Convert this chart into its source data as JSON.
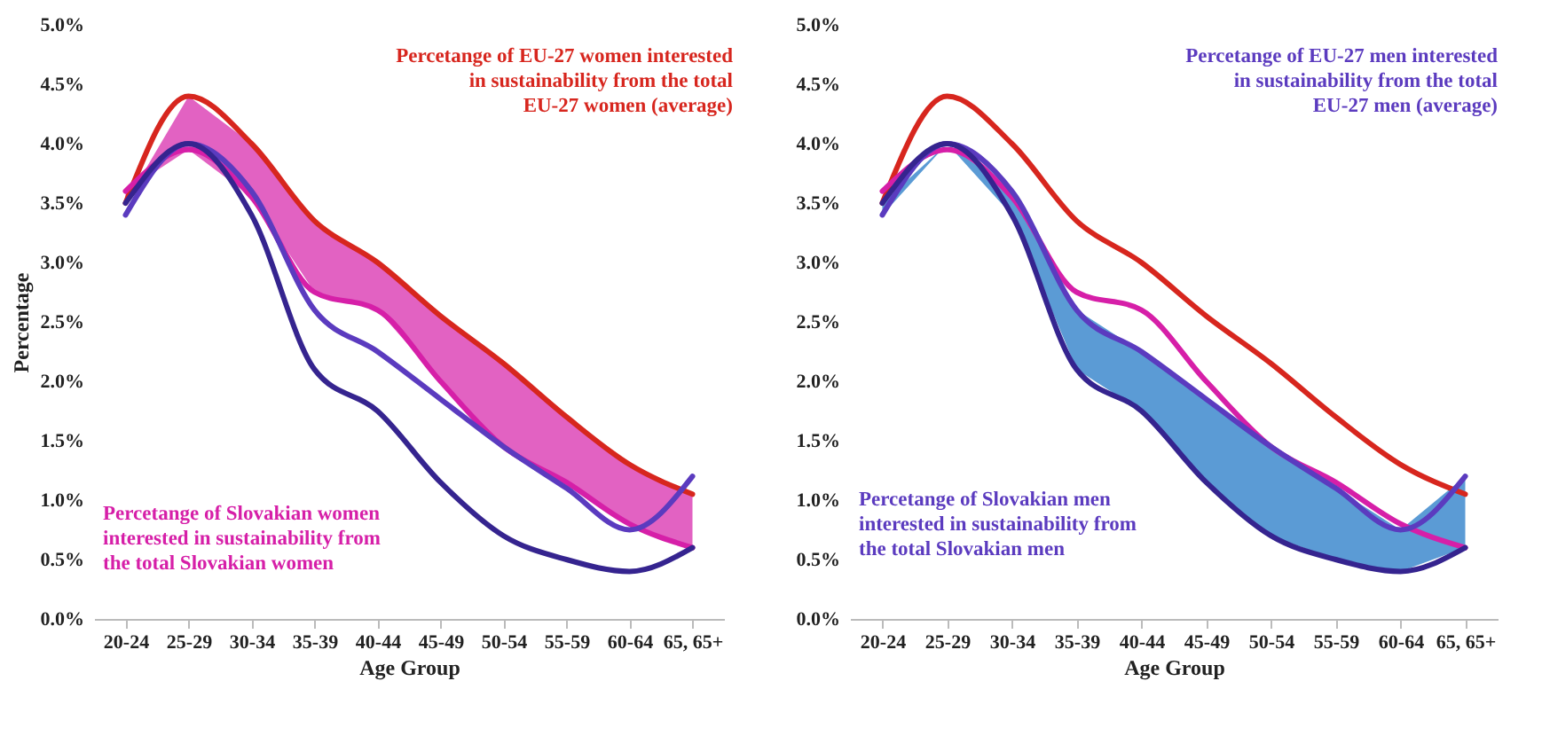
{
  "chart_data": [
    {
      "type": "line",
      "xlabel": "Age Group",
      "ylabel": "Percentage",
      "categories": [
        "20-24",
        "25-29",
        "30-34",
        "35-39",
        "40-44",
        "45-49",
        "50-54",
        "55-59",
        "60-64",
        "65, 65+"
      ],
      "ylim": [
        0,
        5
      ],
      "yticks": [
        {
          "value": 0,
          "label": "0.0%"
        },
        {
          "value": 0.5,
          "label": "0.5%"
        },
        {
          "value": 1,
          "label": "1.0%"
        },
        {
          "value": 1.5,
          "label": "1.5%"
        },
        {
          "value": 2,
          "label": "2.0%"
        },
        {
          "value": 2.5,
          "label": "2.5%"
        },
        {
          "value": 3,
          "label": "3.0%"
        },
        {
          "value": 3.5,
          "label": "3.5%"
        },
        {
          "value": 4,
          "label": "4.0%"
        },
        {
          "value": 4.5,
          "label": "4.5%"
        },
        {
          "value": 5,
          "label": "5.0%"
        }
      ],
      "series": [
        {
          "color": "#d7261e",
          "values": [
            3.5,
            4.4,
            4.0,
            3.35,
            3.0,
            2.55,
            2.15,
            1.7,
            1.3,
            1.05
          ]
        },
        {
          "color": "#d61fa8",
          "values": [
            3.6,
            3.95,
            3.55,
            2.75,
            2.6,
            2.0,
            1.45,
            1.15,
            0.8,
            0.6
          ],
          "lower": [
            3.6,
            3.95,
            3.55,
            2.75,
            2.6,
            2.0,
            1.45,
            1.15,
            0.8,
            0.6
          ],
          "upper": [
            3.5,
            4.4,
            4.0,
            3.35,
            3.0,
            2.55,
            2.15,
            1.7,
            1.3,
            1.05
          ]
        },
        {
          "color": "#5b3bbf",
          "values": [
            3.4,
            4.0,
            3.6,
            2.6,
            2.25,
            1.85,
            1.45,
            1.1,
            0.75,
            1.2
          ]
        },
        {
          "color": "#35248f",
          "values": [
            3.5,
            4.0,
            3.4,
            2.1,
            1.75,
            1.15,
            0.7,
            0.5,
            0.4,
            0.6
          ]
        }
      ],
      "annotations": [
        "Percetange of EU-27 women interested in sustainability from the total EU-27 women (average)",
        "Percetange of Slovakian women interested in sustainability from the total Slovakian women"
      ]
    },
    {
      "type": "line",
      "xlabel": "Age Group",
      "categories": [
        "20-24",
        "25-29",
        "30-34",
        "35-39",
        "40-44",
        "45-49",
        "50-54",
        "55-59",
        "60-64",
        "65, 65+"
      ],
      "ylim": [
        0,
        5
      ],
      "yticks": [
        {
          "value": 0,
          "label": "0.0%"
        },
        {
          "value": 0.5,
          "label": "0.5%"
        },
        {
          "value": 1,
          "label": "1.0%"
        },
        {
          "value": 1.5,
          "label": "1.5%"
        },
        {
          "value": 2,
          "label": "2.0%"
        },
        {
          "value": 2.5,
          "label": "2.5%"
        },
        {
          "value": 3,
          "label": "3.0%"
        },
        {
          "value": 3.5,
          "label": "3.5%"
        },
        {
          "value": 4,
          "label": "4.0%"
        },
        {
          "value": 4.5,
          "label": "4.5%"
        },
        {
          "value": 5,
          "label": "5.0%"
        }
      ],
      "series": [
        {
          "color": "#d7261e",
          "values": [
            3.5,
            4.4,
            4.0,
            3.35,
            3.0,
            2.55,
            2.15,
            1.7,
            1.3,
            1.05
          ]
        },
        {
          "color": "#d61fa8",
          "values": [
            3.6,
            3.95,
            3.55,
            2.75,
            2.6,
            2.0,
            1.45,
            1.15,
            0.8,
            0.6
          ]
        },
        {
          "color": "#5b3bbf",
          "values": [
            3.4,
            4.0,
            3.6,
            2.6,
            2.25,
            1.85,
            1.45,
            1.1,
            0.75,
            1.2
          ]
        },
        {
          "color": "#35248f",
          "values": [
            3.5,
            4.0,
            3.4,
            2.1,
            1.75,
            1.15,
            0.7,
            0.5,
            0.4,
            0.6
          ],
          "lower": [
            3.5,
            4.0,
            3.4,
            2.1,
            1.75,
            1.15,
            0.7,
            0.5,
            0.4,
            0.6
          ],
          "upper": [
            3.4,
            4.0,
            3.6,
            2.6,
            2.25,
            1.85,
            1.45,
            1.1,
            0.75,
            1.2
          ]
        }
      ],
      "annotations": [
        "Percetange of EU-27 men interested in sustainability from the total EU-27 men (average)",
        "Percetange of Slovakian men interested in sustainability from the total Slovakian men"
      ]
    }
  ]
}
